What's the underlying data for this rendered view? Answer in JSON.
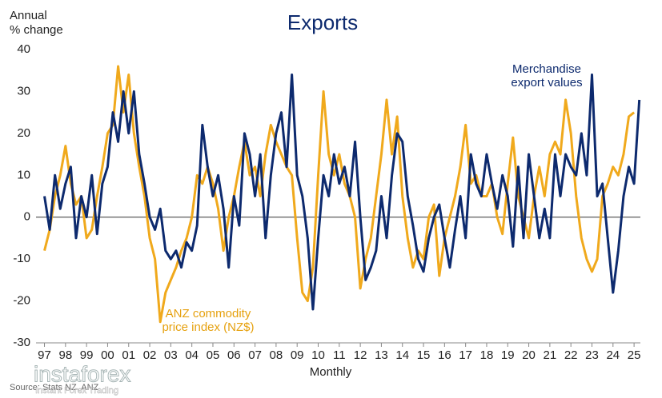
{
  "chart_data": {
    "type": "line",
    "title": "Exports",
    "ylabel": [
      "Annual",
      "% change"
    ],
    "xlabel": "Monthly",
    "source": "Source: Stats NZ, ANZ",
    "watermark": {
      "brand": "instaforex",
      "tagline": "Instant Forex Trading"
    },
    "xlim": [
      1996.6,
      2025.3
    ],
    "ylim": [
      -30,
      40
    ],
    "yticks": [
      -30,
      -20,
      -10,
      0,
      10,
      20,
      30,
      40
    ],
    "xticks": [
      {
        "value": 1997,
        "label": "97"
      },
      {
        "value": 1998,
        "label": "98"
      },
      {
        "value": 1999,
        "label": "99"
      },
      {
        "value": 2000,
        "label": "00"
      },
      {
        "value": 2001,
        "label": "01"
      },
      {
        "value": 2002,
        "label": "02"
      },
      {
        "value": 2003,
        "label": "03"
      },
      {
        "value": 2004,
        "label": "04"
      },
      {
        "value": 2005,
        "label": "05"
      },
      {
        "value": 2006,
        "label": "06"
      },
      {
        "value": 2007,
        "label": "07"
      },
      {
        "value": 2008,
        "label": "08"
      },
      {
        "value": 2009,
        "label": "09"
      },
      {
        "value": 2010,
        "label": "10"
      },
      {
        "value": 2011,
        "label": "11"
      },
      {
        "value": 2012,
        "label": "12"
      },
      {
        "value": 2013,
        "label": "13"
      },
      {
        "value": 2014,
        "label": "14"
      },
      {
        "value": 2015,
        "label": "15"
      },
      {
        "value": 2016,
        "label": "16"
      },
      {
        "value": 2017,
        "label": "17"
      },
      {
        "value": 2018,
        "label": "18"
      },
      {
        "value": 2019,
        "label": "19"
      },
      {
        "value": 2020,
        "label": "20"
      },
      {
        "value": 2021,
        "label": "21"
      },
      {
        "value": 2022,
        "label": "22"
      },
      {
        "value": 2023,
        "label": "23"
      },
      {
        "value": 2024,
        "label": "24"
      },
      {
        "value": 2025,
        "label": "25"
      }
    ],
    "zero_line": true,
    "x": [
      1997,
      1997.25,
      1997.5,
      1997.75,
      1998,
      1998.25,
      1998.5,
      1998.75,
      1999,
      1999.25,
      1999.5,
      1999.75,
      2000,
      2000.25,
      2000.5,
      2000.75,
      2001,
      2001.25,
      2001.5,
      2001.75,
      2002,
      2002.25,
      2002.5,
      2002.75,
      2003,
      2003.25,
      2003.5,
      2003.75,
      2004,
      2004.25,
      2004.5,
      2004.75,
      2005,
      2005.25,
      2005.5,
      2005.75,
      2006,
      2006.25,
      2006.5,
      2006.75,
      2007,
      2007.25,
      2007.5,
      2007.75,
      2008,
      2008.25,
      2008.5,
      2008.75,
      2009,
      2009.25,
      2009.5,
      2009.75,
      2010,
      2010.25,
      2010.5,
      2010.75,
      2011,
      2011.25,
      2011.5,
      2011.75,
      2012,
      2012.25,
      2012.5,
      2012.75,
      2013,
      2013.25,
      2013.5,
      2013.75,
      2014,
      2014.25,
      2014.5,
      2014.75,
      2015,
      2015.25,
      2015.5,
      2015.75,
      2016,
      2016.25,
      2016.5,
      2016.75,
      2017,
      2017.25,
      2017.5,
      2017.75,
      2018,
      2018.25,
      2018.5,
      2018.75,
      2019,
      2019.25,
      2019.5,
      2019.75,
      2020,
      2020.25,
      2020.5,
      2020.75,
      2021,
      2021.25,
      2021.5,
      2021.75,
      2022,
      2022.25,
      2022.5,
      2022.75,
      2023,
      2023.25,
      2023.5,
      2023.75,
      2024,
      2024.25,
      2024.5,
      2024.75,
      2025,
      2025.25
    ],
    "series": [
      {
        "name": "Merchandise export values",
        "color": "#0d2a6e",
        "values": [
          5,
          -3,
          10,
          2,
          8,
          12,
          -5,
          5,
          0,
          10,
          -4,
          8,
          12,
          25,
          18,
          30,
          20,
          30,
          15,
          8,
          0,
          -3,
          2,
          -8,
          -10,
          -8,
          -12,
          -6,
          -8,
          -2,
          22,
          12,
          5,
          10,
          2,
          -12,
          5,
          -2,
          20,
          15,
          5,
          15,
          -5,
          10,
          20,
          25,
          12,
          34,
          10,
          5,
          -5,
          -22,
          -5,
          10,
          5,
          15,
          8,
          12,
          5,
          18,
          0,
          -15,
          -12,
          -8,
          5,
          -5,
          10,
          20,
          18,
          5,
          -2,
          -10,
          -13,
          -5,
          0,
          3,
          -5,
          -12,
          -3,
          5,
          -5,
          15,
          8,
          5,
          15,
          8,
          2,
          10,
          5,
          -7,
          12,
          -5,
          15,
          5,
          -5,
          2,
          -5,
          15,
          5,
          15,
          12,
          10,
          20,
          10,
          34,
          5,
          8,
          -5,
          -18,
          -8,
          5,
          12,
          8,
          28
        ]
      },
      {
        "name": "ANZ commodity price index (NZ$)",
        "color": "#f0a91c",
        "values": [
          -8,
          -3,
          5,
          10,
          17,
          8,
          3,
          5,
          -5,
          -3,
          5,
          12,
          20,
          22,
          36,
          25,
          34,
          20,
          12,
          5,
          -5,
          -10,
          -25,
          -18,
          -15,
          -12,
          -8,
          -5,
          0,
          10,
          8,
          12,
          8,
          2,
          -8,
          0,
          5,
          12,
          18,
          10,
          12,
          5,
          15,
          22,
          18,
          15,
          12,
          10,
          -5,
          -18,
          -20,
          -12,
          10,
          30,
          15,
          10,
          15,
          8,
          5,
          0,
          -17,
          -10,
          -5,
          5,
          15,
          28,
          15,
          24,
          5,
          -5,
          -12,
          -8,
          -10,
          0,
          3,
          -14,
          -5,
          0,
          5,
          12,
          22,
          8,
          10,
          5,
          5,
          8,
          0,
          -4,
          8,
          19,
          5,
          0,
          -5,
          5,
          12,
          5,
          15,
          18,
          15,
          28,
          20,
          5,
          -5,
          -10,
          -13,
          -10,
          5,
          8,
          12,
          10,
          15,
          24,
          25,
          null
        ]
      }
    ]
  }
}
